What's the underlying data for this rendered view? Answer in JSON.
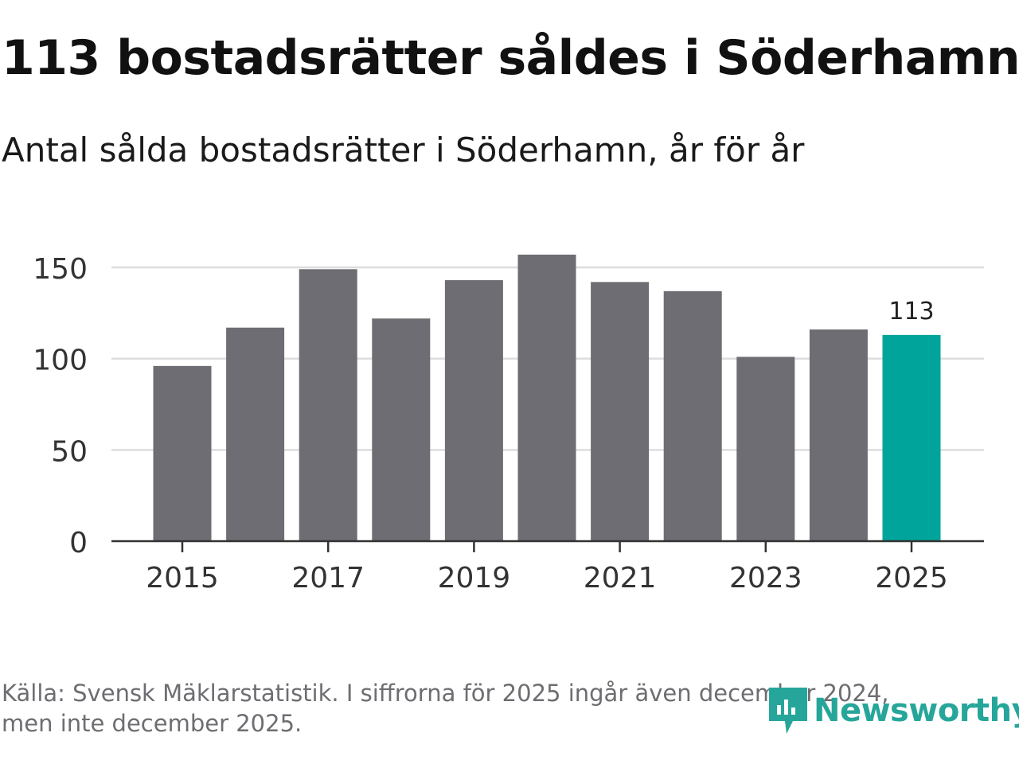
{
  "header": {
    "title": "113 bostadsrätter såldes i Söderhamn",
    "subtitle": "Antal sålda bostadsrätter i Söderhamn, år för år"
  },
  "footer": {
    "source_line1": "Källa: Svensk Mäklarstatistik. I siffrorna för 2025 ingår även december 2024,",
    "source_line2": "men inte december 2025."
  },
  "brand": {
    "name": "Newsworthy",
    "color": "#26a69a"
  },
  "colors": {
    "bar": "#6e6d73",
    "highlight": "#00a49a",
    "grid": "#dddddd",
    "axis": "#333333"
  },
  "chart_data": {
    "type": "bar",
    "title": "Antal sålda bostadsrätter i Söderhamn, år för år",
    "categories": [
      "2015",
      "2016",
      "2017",
      "2018",
      "2019",
      "2020",
      "2021",
      "2022",
      "2023",
      "2024",
      "2025"
    ],
    "values": [
      96,
      117,
      149,
      122,
      143,
      157,
      142,
      137,
      101,
      116,
      113
    ],
    "ylim": [
      0,
      160
    ],
    "yticks": [
      0,
      50,
      100,
      150
    ],
    "xtick_labels": [
      "2015",
      "2017",
      "2019",
      "2021",
      "2023",
      "2025"
    ],
    "highlight_index": 10,
    "highlight_label": "113",
    "grid": true,
    "xlabel": "",
    "ylabel": ""
  }
}
